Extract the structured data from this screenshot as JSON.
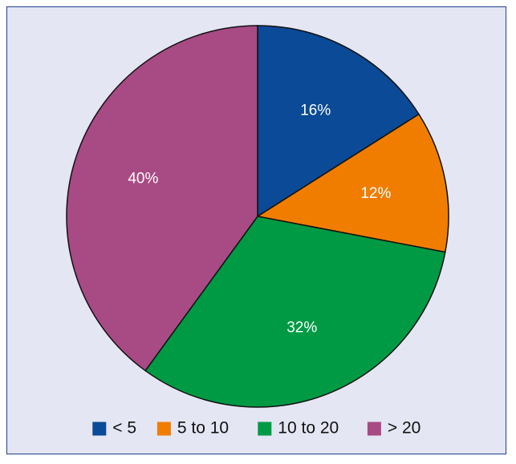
{
  "chart_data": {
    "type": "pie",
    "title": "",
    "categories": [
      "< 5",
      "5 to 10",
      "10 to 20",
      "> 20"
    ],
    "values": [
      16,
      12,
      32,
      40
    ],
    "labels": [
      "16%",
      "12%",
      "32%",
      "40%"
    ],
    "colors": [
      "#0b4a96",
      "#f07d00",
      "#009a44",
      "#a84a83"
    ],
    "legend_position": "bottom",
    "start_angle_deg": 0,
    "direction": "clockwise"
  }
}
